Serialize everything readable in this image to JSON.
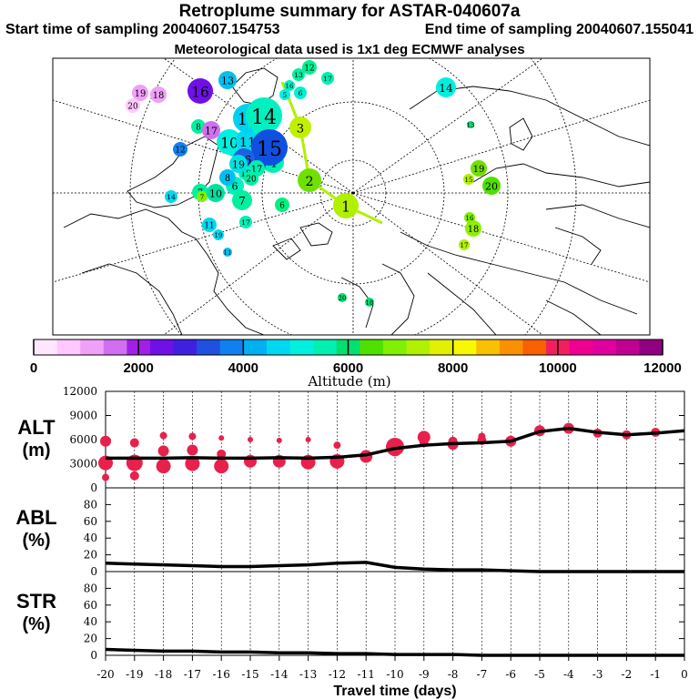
{
  "header": {
    "title": "Retroplume summary for ASTAR-040607a",
    "start_label": "Start time of sampling 20040607.154753",
    "end_label": "End time of sampling 20040607.155041",
    "met_label": "Meteorological data used is 1x1 deg ECMWF analyses"
  },
  "colorbar": {
    "label": "Altitude (m)",
    "ticks": [
      "0",
      "2000",
      "4000",
      "6000",
      "8000",
      "10000",
      "12000"
    ],
    "colors": [
      "#ffe8ff",
      "#ffc8ff",
      "#f0a0f8",
      "#d070f0",
      "#a020e8",
      "#7010e8",
      "#4020e0",
      "#2050e0",
      "#1080f0",
      "#00b0f0",
      "#00d8f0",
      "#00f0e0",
      "#00f0b0",
      "#00e070",
      "#50e000",
      "#80f000",
      "#b0f000",
      "#e0f000",
      "#f8f800",
      "#f8c000",
      "#f89000",
      "#f86000",
      "#f02060",
      "#f00090",
      "#e000a0",
      "#c00090",
      "#900080"
    ]
  },
  "map": {
    "markers": [
      {
        "label": "1",
        "color": "#b0f000"
      },
      {
        "label": "2",
        "color": "#70e000"
      },
      {
        "label": "3",
        "color": "#c0f000"
      },
      {
        "label": "4",
        "color": "#00f0b0"
      },
      {
        "label": "5",
        "color": "#4020e0"
      },
      {
        "label": "6",
        "color": "#00f0c0"
      },
      {
        "label": "7",
        "color": "#00f0a0"
      },
      {
        "label": "8",
        "color": "#00c0f0"
      },
      {
        "label": "9",
        "color": "#00f0d0"
      },
      {
        "label": "10",
        "color": "#00f0e0"
      },
      {
        "label": "11",
        "color": "#00d8f0"
      },
      {
        "label": "12",
        "color": "#00f0d0"
      },
      {
        "label": "13",
        "color": "#00d0f0"
      },
      {
        "label": "14",
        "color": "#00f0c0"
      },
      {
        "label": "15",
        "color": "#1050e0"
      },
      {
        "label": "16",
        "color": "#2060e0"
      },
      {
        "label": "17",
        "color": "#00f0b0"
      },
      {
        "label": "18",
        "color": "#00f0c0"
      },
      {
        "label": "19",
        "color": "#00e0e0"
      },
      {
        "label": "20",
        "color": "#00f0a0"
      },
      {
        "label": "16",
        "color": "#7010e8"
      },
      {
        "label": "19",
        "color": "#f0a0f8"
      },
      {
        "label": "18",
        "color": "#f0a0f8"
      },
      {
        "label": "20",
        "color": "#ffc8ff"
      },
      {
        "label": "13",
        "color": "#00c0f0"
      },
      {
        "label": "8",
        "color": "#00f0a0"
      },
      {
        "label": "17",
        "color": "#d070f0"
      },
      {
        "label": "12",
        "color": "#1080f0"
      },
      {
        "label": "14",
        "color": "#00d8f0"
      },
      {
        "label": "7",
        "color": "#00f0a0"
      },
      {
        "label": "7",
        "color": "#80f000"
      },
      {
        "label": "10",
        "color": "#00e0a0"
      },
      {
        "label": "19",
        "color": "#00d8f0"
      },
      {
        "label": "11",
        "color": "#00d8f0"
      },
      {
        "label": "11",
        "color": "#00c0f0"
      },
      {
        "label": "17",
        "color": "#00f0b0"
      },
      {
        "label": "6",
        "color": "#00f080"
      },
      {
        "label": "19",
        "color": "#70e000"
      },
      {
        "label": "15",
        "color": "#b0f000"
      },
      {
        "label": "20",
        "color": "#50e000"
      },
      {
        "label": "18",
        "color": "#90f000"
      },
      {
        "label": "16",
        "color": "#80f000"
      },
      {
        "label": "17",
        "color": "#b0f000"
      },
      {
        "label": "14",
        "color": "#00f0e0"
      },
      {
        "label": "13",
        "color": "#00e070"
      },
      {
        "label": "12",
        "color": "#00f090"
      },
      {
        "label": "13",
        "color": "#00f0a0"
      },
      {
        "label": "17",
        "color": "#00f0b0"
      },
      {
        "label": "16",
        "color": "#00f0c0"
      },
      {
        "label": "6",
        "color": "#00f0d0"
      },
      {
        "label": "5",
        "color": "#00f0e0"
      },
      {
        "label": "20",
        "color": "#00e070"
      },
      {
        "label": "18",
        "color": "#00e070"
      }
    ]
  },
  "chart_data": [
    {
      "type": "scatter+line",
      "panel": "ALT",
      "ylabel": "ALT\n(m)",
      "ylabel_lines": [
        "ALT",
        "(m)"
      ],
      "ylim": [
        0,
        12000
      ],
      "yticks": [
        "0",
        "3000",
        "6000",
        "9000",
        "12000"
      ],
      "xlim": [
        -20,
        0
      ],
      "series": [
        {
          "name": "mean altitude",
          "x": [
            -20,
            -19,
            -18,
            -17,
            -16,
            -15,
            -14,
            -13,
            -12,
            -11,
            -10,
            -9,
            -8,
            -7,
            -6,
            -5,
            -4,
            -3,
            -2,
            -1,
            0
          ],
          "values": [
            3700,
            3700,
            3700,
            3750,
            3700,
            3700,
            3750,
            3700,
            3800,
            4100,
            4900,
            5300,
            5500,
            5600,
            5800,
            7000,
            7400,
            6900,
            6600,
            6800,
            7100
          ]
        },
        {
          "name": "cluster centers (m)",
          "x": [
            -20,
            -20,
            -20,
            -19,
            -19,
            -19,
            -18,
            -18,
            -18,
            -17,
            -17,
            -17,
            -16,
            -16,
            -16,
            -15,
            -15,
            -14,
            -14,
            -13,
            -13,
            -12,
            -12,
            -11,
            -10,
            -10,
            -9,
            -9,
            -8,
            -8,
            -7,
            -7,
            -6,
            -5,
            -4,
            -3,
            -2,
            -1
          ],
          "values": [
            5800,
            3100,
            1300,
            5600,
            3100,
            1500,
            6500,
            4600,
            2700,
            6400,
            4700,
            3000,
            6200,
            4200,
            2700,
            6000,
            3300,
            5900,
            3300,
            6000,
            3200,
            5300,
            3300,
            3900,
            4700,
            5100,
            6300,
            5600,
            5800,
            5400,
            6400,
            5900,
            5800,
            7100,
            7400,
            6800,
            6600,
            6900
          ]
        },
        {
          "name": "cluster size",
          "values": [
            6,
            8,
            4,
            5,
            9,
            5,
            4,
            6,
            8,
            4,
            6,
            8,
            3,
            5,
            8,
            3,
            7,
            3,
            7,
            3,
            8,
            4,
            8,
            7,
            7,
            10,
            7,
            5,
            5,
            6,
            4,
            5,
            6,
            6,
            6,
            5,
            5,
            5
          ]
        }
      ]
    },
    {
      "type": "line",
      "panel": "ABL",
      "ylabel": "ABL\n(%)",
      "ylabel_lines": [
        "ABL",
        "(%)"
      ],
      "ylim": [
        0,
        100
      ],
      "yticks": [
        "0",
        "20",
        "40",
        "60",
        "80"
      ],
      "x": [
        -20,
        -19,
        -18,
        -17,
        -16,
        -15,
        -14,
        -13,
        -12,
        -11,
        -10,
        -9,
        -8,
        -7,
        -6,
        -5,
        -4,
        -3,
        -2,
        -1,
        0
      ],
      "series": [
        {
          "name": "ABL fraction",
          "values": [
            10,
            9,
            8,
            7,
            6,
            6,
            7,
            8,
            10,
            11,
            5,
            3,
            2,
            2,
            1,
            0,
            0,
            0,
            0,
            0,
            0
          ]
        }
      ]
    },
    {
      "type": "line",
      "panel": "STR",
      "ylabel": "STR\n(%)",
      "ylabel_lines": [
        "STR",
        "(%)"
      ],
      "ylim": [
        0,
        100
      ],
      "yticks": [
        "0",
        "20",
        "40",
        "60",
        "80"
      ],
      "x": [
        -20,
        -19,
        -18,
        -17,
        -16,
        -15,
        -14,
        -13,
        -12,
        -11,
        -10,
        -9,
        -8,
        -7,
        -6,
        -5,
        -4,
        -3,
        -2,
        -1,
        0
      ],
      "series": [
        {
          "name": "STR fraction",
          "values": [
            7,
            6,
            5,
            5,
            4,
            4,
            3,
            3,
            2,
            2,
            1,
            1,
            1,
            0,
            0,
            0,
            0,
            0,
            0,
            0,
            0
          ]
        }
      ]
    }
  ],
  "xaxis": {
    "label": "Travel time (days)",
    "ticks": [
      "-20",
      "-19",
      "-18",
      "-17",
      "-16",
      "-15",
      "-14",
      "-13",
      "-12",
      "-11",
      "-10",
      "-9",
      "-8",
      "-7",
      "-6",
      "-5",
      "-4",
      "-3",
      "-2",
      "-1",
      "0"
    ],
    "values": [
      -20,
      -19,
      -18,
      -17,
      -16,
      -15,
      -14,
      -13,
      -12,
      -11,
      -10,
      -9,
      -8,
      -7,
      -6,
      -5,
      -4,
      -3,
      -2,
      -1,
      0
    ]
  }
}
